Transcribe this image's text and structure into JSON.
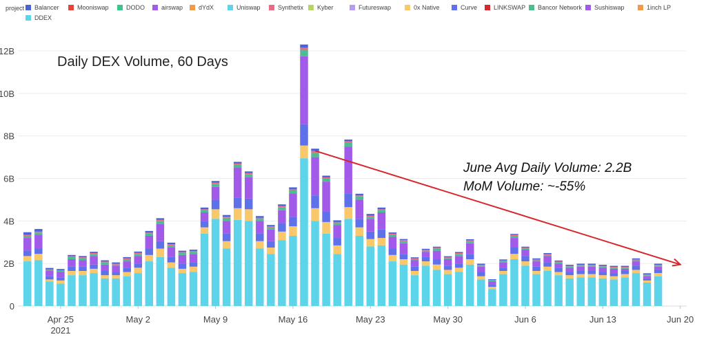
{
  "chart_data": {
    "type": "bar",
    "stacked": true,
    "title": "Daily DEX Volume, 60 Days",
    "legend_title": "project",
    "legend_placement": "top",
    "ylim": [
      0,
      12.5
    ],
    "y_ticks": [
      "0",
      "2B",
      "4B",
      "6B",
      "8B",
      "10B",
      "12B"
    ],
    "y_tick_values": [
      0,
      2,
      4,
      6,
      8,
      10,
      12
    ],
    "x_ticks": [
      {
        "label": "Apr 25",
        "sublabel": "2021",
        "index": 3
      },
      {
        "label": "May 2",
        "sublabel": "",
        "index": 10
      },
      {
        "label": "May 9",
        "sublabel": "",
        "index": 17
      },
      {
        "label": "May 16",
        "sublabel": "",
        "index": 24
      },
      {
        "label": "May 23",
        "sublabel": "",
        "index": 31
      },
      {
        "label": "May 30",
        "sublabel": "",
        "index": 38
      },
      {
        "label": "Jun 6",
        "sublabel": "",
        "index": 45
      },
      {
        "label": "Jun 13",
        "sublabel": "",
        "index": 52
      },
      {
        "label": "Jun 20",
        "sublabel": "",
        "index": 59
      }
    ],
    "legend": [
      {
        "name": "Balancer",
        "color": "#4a63d8"
      },
      {
        "name": "Mooniswap",
        "color": "#e8433a"
      },
      {
        "name": "DODO",
        "color": "#3cc48c"
      },
      {
        "name": "airswap",
        "color": "#a25ae8"
      },
      {
        "name": "dYdX",
        "color": "#f29a48"
      },
      {
        "name": "Uniswap",
        "color": "#5dd4ea"
      },
      {
        "name": "Synthetix",
        "color": "#ec6a86"
      },
      {
        "name": "Kyber",
        "color": "#b6d46a"
      },
      {
        "name": "Futureswap",
        "color": "#b49cf2"
      },
      {
        "name": "0x Native",
        "color": "#f8c86a"
      },
      {
        "name": "Curve",
        "color": "#5e70ea"
      },
      {
        "name": "LINKSWAP",
        "color": "#d8262a"
      },
      {
        "name": "Bancor Network",
        "color": "#4dbc90"
      },
      {
        "name": "Sushiswap",
        "color": "#a25ae8"
      },
      {
        "name": "1inch LP",
        "color": "#f29a48"
      },
      {
        "name": "DDEX",
        "color": "#5dd4ea"
      }
    ],
    "totals": [
      3.5,
      3.65,
      1.8,
      1.75,
      2.4,
      2.35,
      2.55,
      2.15,
      2.05,
      2.3,
      2.55,
      3.5,
      4.1,
      2.95,
      2.6,
      2.65,
      4.6,
      5.85,
      4.25,
      6.75,
      6.3,
      4.3,
      3.85,
      4.8,
      5.6,
      12.3,
      7.3,
      6.1,
      4.1,
      7.8,
      5.25,
      4.3,
      4.6,
      3.45,
      3.15,
      2.3,
      2.7,
      2.8,
      2.35,
      2.55,
      3.15,
      2.0,
      1.25,
      2.2,
      3.35,
      2.8,
      2.2,
      2.5,
      2.1,
      1.9,
      2.0,
      1.95,
      1.9,
      1.85,
      1.85,
      2.2,
      1.5,
      1.95
    ],
    "series": [
      {
        "name": "Uniswap",
        "color": "#5dd4ea",
        "values": [
          2.1,
          2.15,
          1.15,
          1.05,
          1.45,
          1.45,
          1.55,
          1.3,
          1.3,
          1.4,
          1.55,
          2.1,
          2.3,
          1.8,
          1.55,
          1.6,
          3.4,
          4.1,
          2.7,
          4.05,
          4.0,
          2.7,
          2.45,
          3.1,
          3.3,
          6.95,
          4.0,
          3.4,
          2.45,
          4.1,
          3.3,
          2.8,
          2.85,
          2.1,
          1.95,
          1.45,
          1.9,
          1.7,
          1.5,
          1.6,
          1.95,
          1.25,
          0.8,
          1.5,
          2.2,
          1.9,
          1.5,
          1.65,
          1.45,
          1.3,
          1.35,
          1.35,
          1.3,
          1.25,
          1.35,
          1.55,
          1.1,
          1.4
        ]
      },
      {
        "name": "0x Native",
        "color": "#f8c86a",
        "values": [
          0.25,
          0.3,
          0.1,
          0.15,
          0.2,
          0.2,
          0.2,
          0.15,
          0.15,
          0.2,
          0.25,
          0.3,
          0.4,
          0.25,
          0.2,
          0.25,
          0.3,
          0.45,
          0.35,
          0.55,
          0.55,
          0.35,
          0.3,
          0.4,
          0.45,
          0.6,
          0.6,
          0.55,
          0.4,
          0.55,
          0.4,
          0.35,
          0.35,
          0.3,
          0.25,
          0.2,
          0.2,
          0.25,
          0.2,
          0.2,
          0.25,
          0.15,
          0.1,
          0.15,
          0.25,
          0.2,
          0.15,
          0.2,
          0.15,
          0.15,
          0.15,
          0.15,
          0.15,
          0.15,
          0.15,
          0.15,
          0.1,
          0.15
        ]
      },
      {
        "name": "Curve",
        "color": "#5e70ea",
        "values": [
          0.25,
          0.25,
          0.15,
          0.15,
          0.2,
          0.2,
          0.2,
          0.2,
          0.15,
          0.2,
          0.2,
          0.3,
          0.35,
          0.25,
          0.25,
          0.2,
          0.3,
          0.45,
          0.35,
          0.5,
          0.5,
          0.35,
          0.3,
          0.4,
          0.45,
          1.0,
          0.6,
          0.5,
          0.35,
          0.65,
          0.4,
          0.35,
          0.4,
          0.3,
          0.25,
          0.2,
          0.2,
          0.25,
          0.2,
          0.2,
          0.25,
          0.2,
          0.1,
          0.15,
          0.3,
          0.25,
          0.2,
          0.2,
          0.2,
          0.15,
          0.15,
          0.15,
          0.15,
          0.15,
          0.15,
          0.2,
          0.1,
          0.15
        ]
      },
      {
        "name": "Sushiswap",
        "color": "#a25ae8",
        "values": [
          0.6,
          0.65,
          0.25,
          0.25,
          0.35,
          0.3,
          0.4,
          0.3,
          0.3,
          0.3,
          0.35,
          0.6,
          0.8,
          0.45,
          0.4,
          0.4,
          0.4,
          0.6,
          0.6,
          1.4,
          1.0,
          0.6,
          0.55,
          0.6,
          1.1,
          3.2,
          1.8,
          1.4,
          0.6,
          2.2,
          0.9,
          0.6,
          0.8,
          0.55,
          0.5,
          0.3,
          0.25,
          0.4,
          0.3,
          0.35,
          0.5,
          0.25,
          0.15,
          0.25,
          0.45,
          0.3,
          0.25,
          0.3,
          0.2,
          0.2,
          0.2,
          0.2,
          0.2,
          0.2,
          0.1,
          0.2,
          0.1,
          0.15
        ]
      },
      {
        "name": "Bancor Network",
        "color": "#4dbc90",
        "values": [
          0.1,
          0.1,
          0.05,
          0.05,
          0.1,
          0.1,
          0.1,
          0.1,
          0.05,
          0.1,
          0.1,
          0.1,
          0.15,
          0.1,
          0.1,
          0.1,
          0.1,
          0.15,
          0.15,
          0.15,
          0.15,
          0.1,
          0.1,
          0.15,
          0.15,
          0.3,
          0.2,
          0.15,
          0.1,
          0.2,
          0.15,
          0.1,
          0.1,
          0.1,
          0.1,
          0.05,
          0.05,
          0.1,
          0.05,
          0.1,
          0.1,
          0.05,
          0.05,
          0.05,
          0.1,
          0.05,
          0.05,
          0.05,
          0.05,
          0.05,
          0.05,
          0.05,
          0.05,
          0.05,
          0.05,
          0.05,
          0.05,
          0.05
        ]
      },
      {
        "name": "Synthetix",
        "color": "#ec6a86",
        "values": [
          0.05,
          0.05,
          0.03,
          0.03,
          0.04,
          0.04,
          0.04,
          0.04,
          0.04,
          0.04,
          0.05,
          0.05,
          0.05,
          0.05,
          0.04,
          0.04,
          0.05,
          0.05,
          0.05,
          0.05,
          0.05,
          0.05,
          0.05,
          0.05,
          0.05,
          0.1,
          0.1,
          0.05,
          0.05,
          0.05,
          0.05,
          0.05,
          0.05,
          0.05,
          0.05,
          0.04,
          0.04,
          0.04,
          0.04,
          0.04,
          0.04,
          0.04,
          0.03,
          0.04,
          0.04,
          0.04,
          0.04,
          0.04,
          0.04,
          0.04,
          0.04,
          0.04,
          0.04,
          0.04,
          0.04,
          0.04,
          0.04,
          0.04
        ]
      },
      {
        "name": "Balancer",
        "color": "#4a63d8",
        "values": [
          0.12,
          0.12,
          0.06,
          0.06,
          0.06,
          0.06,
          0.06,
          0.06,
          0.06,
          0.06,
          0.06,
          0.08,
          0.08,
          0.08,
          0.06,
          0.06,
          0.08,
          0.08,
          0.08,
          0.08,
          0.08,
          0.08,
          0.06,
          0.08,
          0.08,
          0.15,
          0.1,
          0.08,
          0.08,
          0.08,
          0.08,
          0.08,
          0.08,
          0.06,
          0.05,
          0.05,
          0.05,
          0.05,
          0.05,
          0.05,
          0.05,
          0.05,
          0.03,
          0.05,
          0.05,
          0.05,
          0.05,
          0.05,
          0.05,
          0.05,
          0.05,
          0.05,
          0.05,
          0.05,
          0.05,
          0.05,
          0.05,
          0.05
        ]
      }
    ],
    "annotations": [
      {
        "text": "June Avg Daily Volume: 2.2B"
      },
      {
        "text": "MoM Volume: ~-55%"
      }
    ],
    "trend_arrow": {
      "color": "#d8262a",
      "from": {
        "x_index": 26,
        "y": 7.3
      },
      "to": {
        "x_index": 59,
        "y": 1.95
      }
    }
  }
}
